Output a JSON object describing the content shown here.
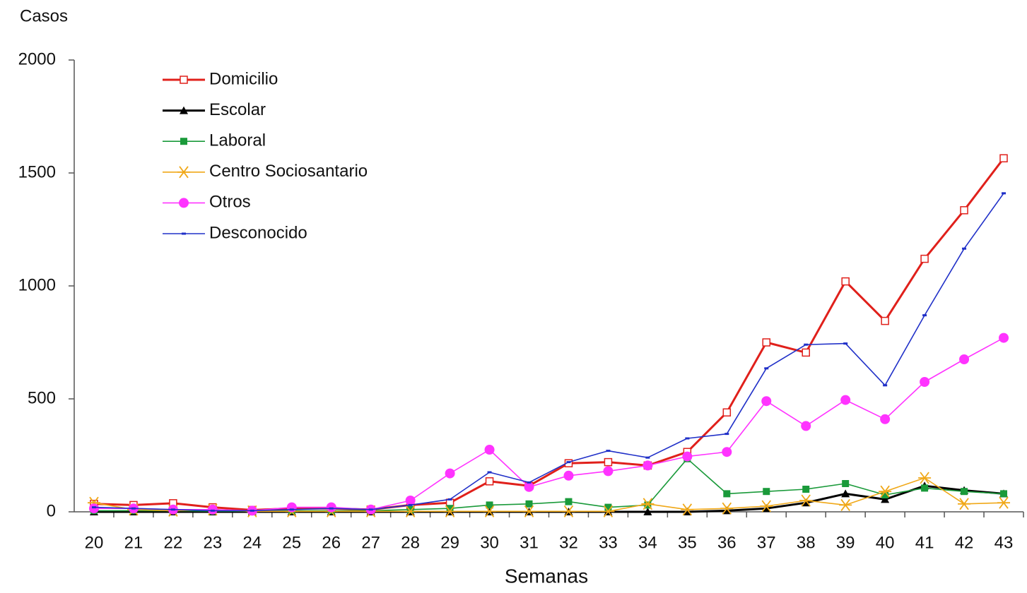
{
  "chart_data": {
    "type": "line",
    "y_label": "Casos",
    "x_label": "Semanas",
    "categories": [
      "20",
      "21",
      "22",
      "23",
      "24",
      "25",
      "26",
      "27",
      "28",
      "29",
      "30",
      "31",
      "32",
      "33",
      "34",
      "35",
      "36",
      "37",
      "38",
      "39",
      "40",
      "41",
      "42",
      "43"
    ],
    "ylim": [
      0,
      2000
    ],
    "yticks": [
      0,
      500,
      1000,
      1500,
      2000
    ],
    "grid": false,
    "legend": "upper left",
    "series": [
      {
        "name": "Domicilio",
        "color": "#e0201b",
        "marker": "square-open",
        "values": [
          35,
          30,
          38,
          20,
          8,
          15,
          15,
          10,
          30,
          40,
          135,
          115,
          215,
          220,
          205,
          265,
          440,
          750,
          705,
          1020,
          845,
          1120,
          1335,
          1565
        ]
      },
      {
        "name": "Escolar",
        "color": "#000000",
        "marker": "triangle",
        "values": [
          0,
          0,
          0,
          0,
          0,
          0,
          0,
          0,
          0,
          0,
          0,
          0,
          0,
          0,
          0,
          0,
          5,
          15,
          40,
          80,
          55,
          115,
          95,
          80
        ]
      },
      {
        "name": "Laboral",
        "color": "#1a9a3a",
        "marker": "square",
        "values": [
          5,
          5,
          5,
          3,
          3,
          5,
          5,
          5,
          10,
          15,
          30,
          35,
          45,
          20,
          30,
          235,
          80,
          90,
          100,
          125,
          75,
          105,
          90,
          80
        ]
      },
      {
        "name": "Centro Sociosantario",
        "color": "#f0a818",
        "marker": "asterisk",
        "values": [
          40,
          10,
          5,
          10,
          2,
          2,
          2,
          2,
          2,
          2,
          2,
          2,
          2,
          2,
          35,
          10,
          15,
          25,
          50,
          30,
          90,
          150,
          35,
          40
        ]
      },
      {
        "name": "Otros",
        "color": "#ff33ff",
        "marker": "circle",
        "values": [
          15,
          15,
          10,
          10,
          5,
          20,
          20,
          10,
          50,
          170,
          275,
          110,
          160,
          180,
          205,
          245,
          265,
          490,
          380,
          495,
          410,
          575,
          675,
          770
        ]
      },
      {
        "name": "Desconocido",
        "color": "#2030c8",
        "marker": "dash",
        "values": [
          20,
          15,
          10,
          5,
          5,
          10,
          15,
          10,
          30,
          55,
          175,
          130,
          220,
          270,
          240,
          325,
          345,
          635,
          740,
          745,
          560,
          870,
          1165,
          1410
        ]
      }
    ]
  }
}
